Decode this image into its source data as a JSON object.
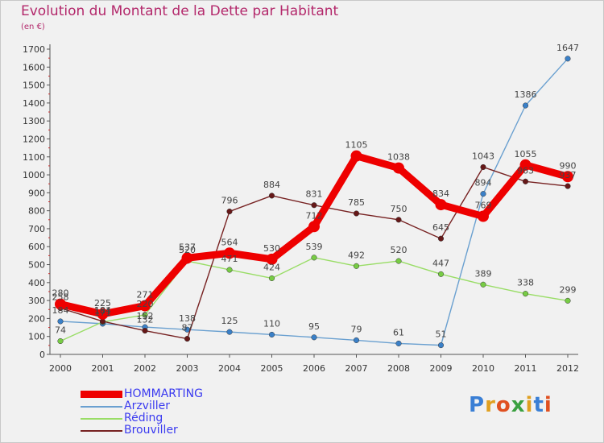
{
  "title": "Evolution du Montant de la Dette par Habitant",
  "subtitle": "(en €)",
  "logo": {
    "text": "Proxiti",
    "letter_colors": [
      "#3a7fd5",
      "#e0a020",
      "#e05020",
      "#3aa040",
      "#e0a020",
      "#3a7fd5",
      "#e05020"
    ]
  },
  "colors": {
    "title": "#b3286b",
    "legend_text": "#3a3af0"
  },
  "chart_data": {
    "type": "line",
    "title": "Evolution du Montant de la Dette par Habitant",
    "subtitle": "(en €)",
    "xlabel": "",
    "ylabel": "",
    "x": [
      "2000",
      "2001",
      "2002",
      "2003",
      "2004",
      "2005",
      "2006",
      "2007",
      "2008",
      "2009",
      "2010",
      "2011",
      "2012"
    ],
    "ylim": [
      0,
      1700
    ],
    "yticks": [
      0,
      100,
      200,
      300,
      400,
      500,
      600,
      700,
      800,
      900,
      1000,
      1100,
      1200,
      1300,
      1400,
      1500,
      1600,
      1700
    ],
    "grid": false,
    "legend_position": "bottom-left",
    "series": [
      {
        "name": "HOMMARTING",
        "color": "#ee0000",
        "marker_color": "#ee0000",
        "emphasis": "thick",
        "values": [
          280,
          225,
          271,
          537,
          564,
          530,
          712,
          1105,
          1038,
          834,
          769,
          1055,
          990
        ],
        "label_text": [
          "280",
          "225",
          "271",
          "537",
          "564",
          "530",
          "712",
          "1105",
          "1038",
          "834",
          "769",
          "1055",
          "990"
        ]
      },
      {
        "name": "Arzviller",
        "color": "#6aa0d0",
        "marker_color": "#3a80c8",
        "emphasis": "thin",
        "values": [
          184,
          171,
          152,
          138,
          125,
          110,
          95,
          79,
          61,
          51,
          894,
          1386,
          1647
        ],
        "label_text": [
          "184",
          "171",
          "152",
          "138",
          "125",
          "110",
          "95",
          "79",
          "61",
          "51",
          "894",
          "1386",
          "1647"
        ]
      },
      {
        "name": "Réding",
        "color": "#99dd66",
        "marker_color": "#77cc44",
        "emphasis": "thin",
        "values": [
          74,
          181,
          220,
          520,
          471,
          424,
          539,
          492,
          520,
          447,
          389,
          338,
          299
        ],
        "label_text": [
          "74",
          "181",
          "220",
          "520",
          "471",
          "424",
          "539",
          "492",
          "520",
          "447",
          "389",
          "338",
          "299"
        ]
      },
      {
        "name": "Brouviller",
        "color": "#772222",
        "marker_color": "#661818",
        "emphasis": "thin",
        "values": [
          258,
          184,
          132,
          87,
          796,
          884,
          831,
          785,
          750,
          645,
          1043,
          963,
          937
        ],
        "label_text": [
          "258",
          "184",
          "132",
          "87",
          "796",
          "884",
          "831",
          "785",
          "750",
          "645",
          "1043",
          "963",
          "937"
        ]
      }
    ]
  }
}
